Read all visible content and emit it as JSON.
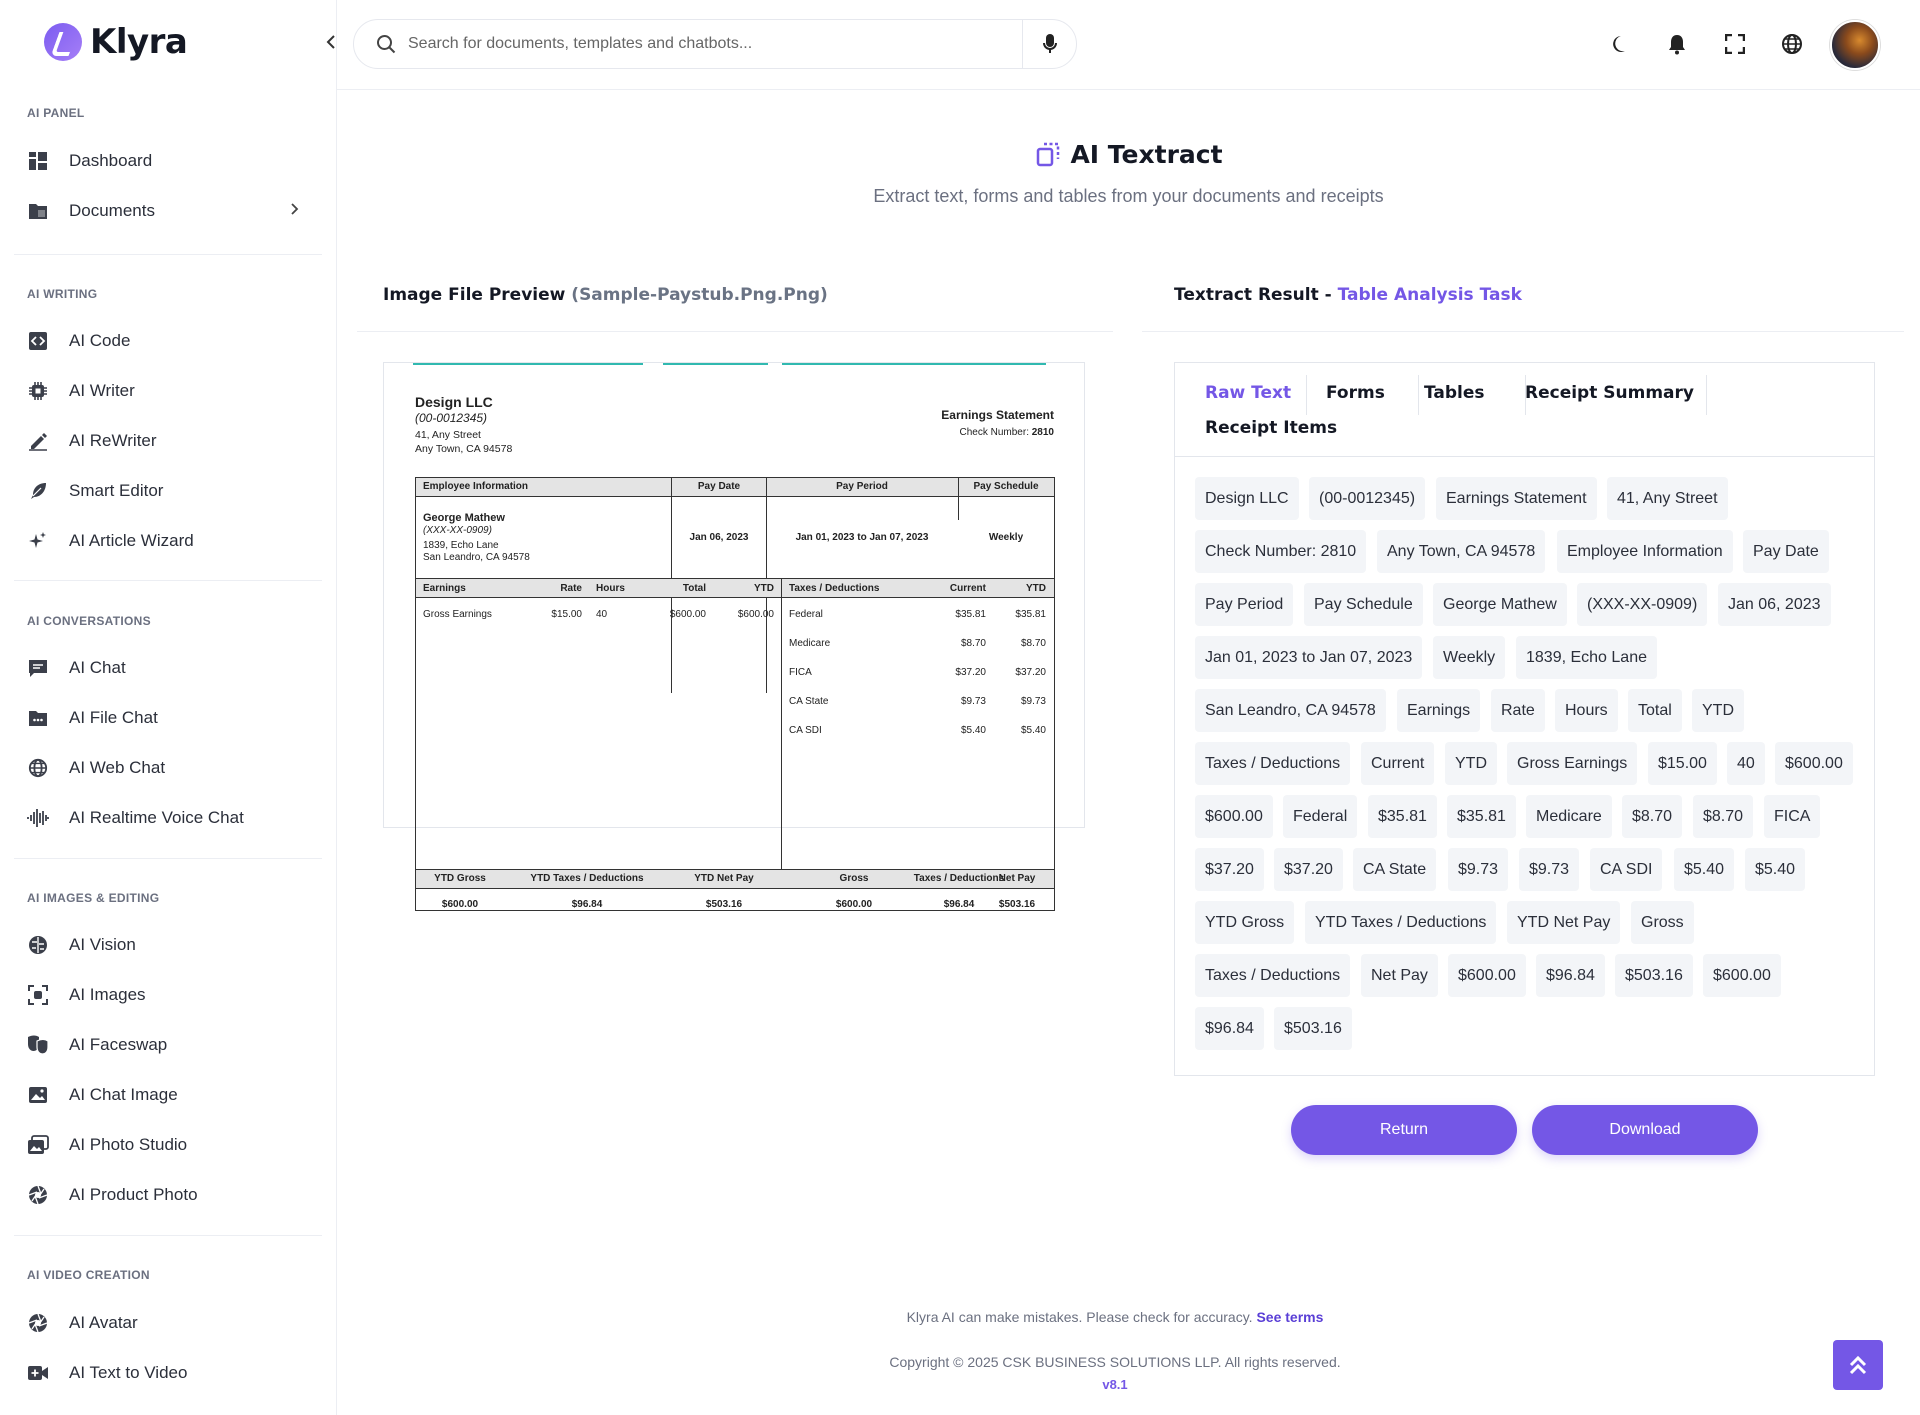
{
  "app": {
    "name": "Klyra"
  },
  "search": {
    "placeholder": "Search for documents, templates and chatbots..."
  },
  "sidebar": {
    "sections": [
      {
        "title": "AI PANEL",
        "items": [
          {
            "label": "Dashboard",
            "icon": "dashboard-icon"
          },
          {
            "label": "Documents",
            "icon": "folder-icon",
            "has_chevron": true
          }
        ]
      },
      {
        "title": "AI WRITING",
        "items": [
          {
            "label": "AI Code",
            "icon": "code-icon"
          },
          {
            "label": "AI Writer",
            "icon": "chip-icon"
          },
          {
            "label": "AI ReWriter",
            "icon": "pen-icon"
          },
          {
            "label": "Smart Editor",
            "icon": "feather-icon"
          },
          {
            "label": "AI Article Wizard",
            "icon": "sparkles-icon"
          }
        ]
      },
      {
        "title": "AI CONVERSATIONS",
        "items": [
          {
            "label": "AI Chat",
            "icon": "chat-icon"
          },
          {
            "label": "AI File Chat",
            "icon": "file-chat-icon"
          },
          {
            "label": "AI Web Chat",
            "icon": "globe-icon"
          },
          {
            "label": "AI Realtime Voice Chat",
            "icon": "waveform-icon"
          }
        ]
      },
      {
        "title": "AI IMAGES & EDITING",
        "items": [
          {
            "label": "AI Vision",
            "icon": "brain-icon"
          },
          {
            "label": "AI Images",
            "icon": "scan-icon"
          },
          {
            "label": "AI Faceswap",
            "icon": "masks-icon"
          },
          {
            "label": "AI Chat Image",
            "icon": "image-icon"
          },
          {
            "label": "AI Photo Studio",
            "icon": "photos-icon"
          },
          {
            "label": "AI Product Photo",
            "icon": "aperture-icon"
          }
        ]
      },
      {
        "title": "AI VIDEO CREATION",
        "items": [
          {
            "label": "AI Avatar",
            "icon": "aperture-icon"
          },
          {
            "label": "AI Text to Video",
            "icon": "video-icon"
          }
        ]
      }
    ]
  },
  "page": {
    "title": "AI Textract",
    "subtitle": "Extract text, forms and tables from your documents and receipts"
  },
  "preview": {
    "heading": "Image File Preview",
    "filename": "(Sample-Paystub.Png.Png)"
  },
  "paystub": {
    "company": "Design LLC",
    "company_id": "(00-0012345)",
    "address1": "41, Any Street",
    "address2": "Any Town, CA 94578",
    "statement_title": "Earnings Statement",
    "check_label": "Check Number:",
    "check_number": "2810",
    "hdr_employee": "Employee Information",
    "hdr_pay_date": "Pay Date",
    "hdr_pay_period": "Pay Period",
    "hdr_pay_schedule": "Pay Schedule",
    "employee_name": "George Mathew",
    "employee_ssn": "(XXX-XX-0909)",
    "employee_addr1": "1839, Echo Lane",
    "employee_addr2": "San Leandro, CA 94578",
    "pay_date": "Jan 06, 2023",
    "pay_period": "Jan 01, 2023 to Jan 07, 2023",
    "pay_schedule": "Weekly",
    "earn_headers": [
      "Earnings",
      "Rate",
      "Hours",
      "Total",
      "YTD"
    ],
    "earn_row": [
      "Gross Earnings",
      "$15.00",
      "40",
      "$600.00",
      "$600.00"
    ],
    "tax_headers": [
      "Taxes / Deductions",
      "Current",
      "YTD"
    ],
    "tax_rows": [
      [
        "Federal",
        "$35.81",
        "$35.81"
      ],
      [
        "Medicare",
        "$8.70",
        "$8.70"
      ],
      [
        "FICA",
        "$37.20",
        "$37.20"
      ],
      [
        "CA State",
        "$9.73",
        "$9.73"
      ],
      [
        "CA SDI",
        "$5.40",
        "$5.40"
      ]
    ],
    "summary_headers": [
      "YTD Gross",
      "YTD Taxes / Deductions",
      "YTD Net Pay",
      "Gross",
      "Taxes / Deductions",
      "Net Pay"
    ],
    "summary_values": [
      "$600.00",
      "$96.84",
      "$503.16",
      "$600.00",
      "$96.84",
      "$503.16"
    ]
  },
  "result": {
    "heading": "Textract Result -",
    "task": "Table Analysis Task",
    "tabs": [
      "Raw Text",
      "Forms",
      "Tables",
      "Receipt Summary",
      "Receipt Items"
    ],
    "active_tab": "Raw Text",
    "chips": [
      "Design LLC",
      "(00-0012345)",
      "Earnings Statement",
      "41, Any Street",
      "Check Number: 2810",
      "Any Town, CA 94578",
      "Employee Information",
      "Pay Date",
      "Pay Period",
      "Pay Schedule",
      "George Mathew",
      "(XXX-XX-0909)",
      "Jan 06, 2023",
      "Jan 01, 2023 to Jan 07, 2023",
      "Weekly",
      "1839, Echo Lane",
      "San Leandro, CA 94578",
      "Earnings",
      "Rate",
      "Hours",
      "Total",
      "YTD",
      "Taxes / Deductions",
      "Current",
      "YTD",
      "Gross Earnings",
      "$15.00",
      "40",
      "$600.00",
      "$600.00",
      "Federal",
      "$35.81",
      "$35.81",
      "Medicare",
      "$8.70",
      "$8.70",
      "FICA",
      "$37.20",
      "$37.20",
      "CA State",
      "$9.73",
      "$9.73",
      "CA SDI",
      "$5.40",
      "$5.40",
      "YTD Gross",
      "YTD Taxes / Deductions",
      "YTD Net Pay",
      "Gross",
      "Taxes / Deductions",
      "Net Pay",
      "$600.00",
      "$96.84",
      "$503.16",
      "$600.00",
      "$96.84",
      "$503.16"
    ]
  },
  "actions": {
    "return_label": "Return",
    "download_label": "Download"
  },
  "footer": {
    "disclaimer": "Klyra AI can make mistakes. Please check for accuracy.",
    "terms_link": "See terms",
    "copyright": "Copyright © 2025 CSK BUSINESS SOLUTIONS LLP. All rights reserved.",
    "version": "v8.1"
  },
  "colors": {
    "accent": "#7457e6",
    "teal_rule": "#31b9b0"
  }
}
